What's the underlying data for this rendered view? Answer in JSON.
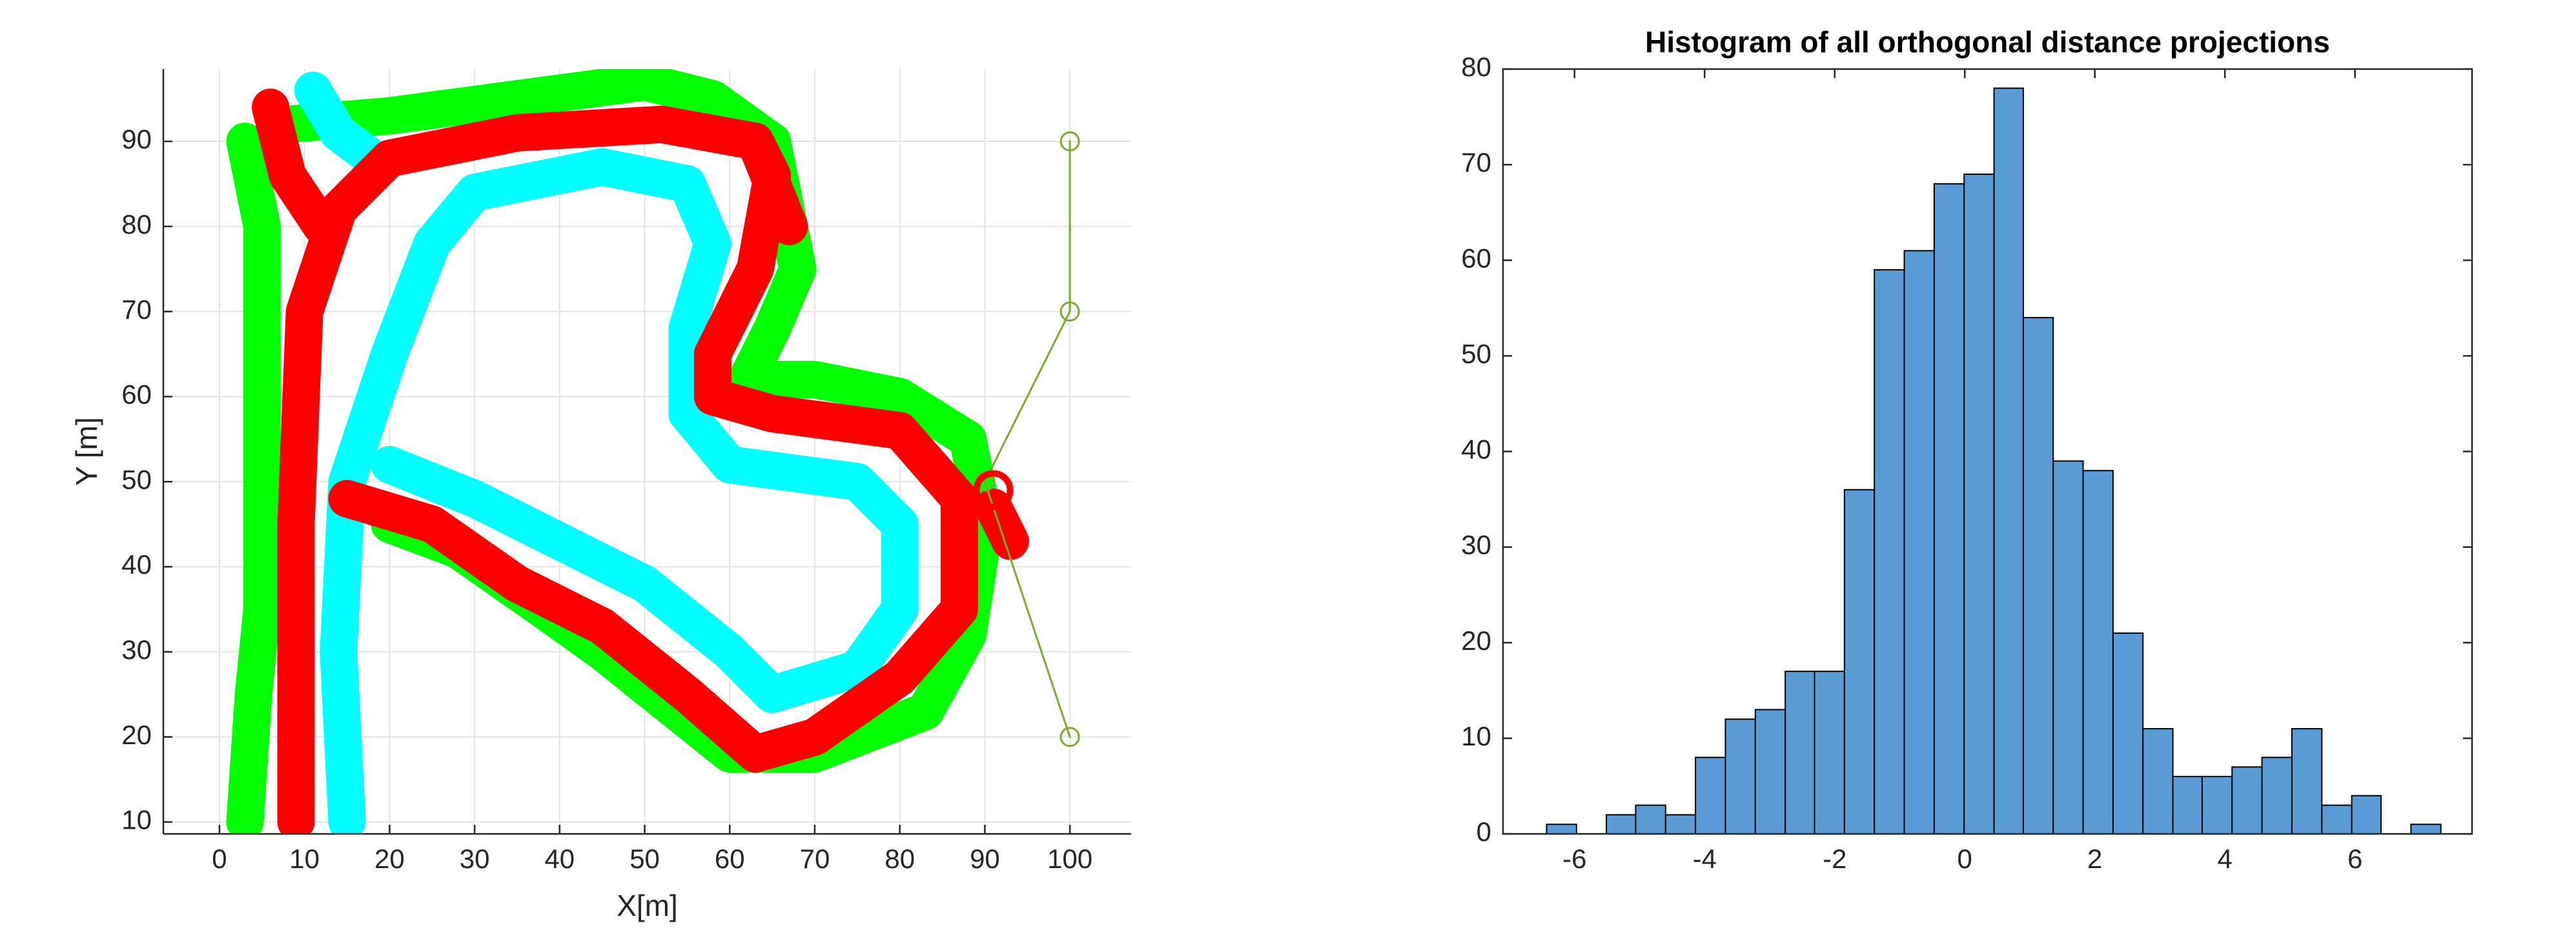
{
  "chart_data": [
    {
      "type": "line",
      "xlabel": "X[m]",
      "ylabel": "Y [m]",
      "xlim": [
        -6.6,
        107.2
      ],
      "ylim": [
        8.6,
        98.5
      ],
      "xticks": [
        0,
        10,
        20,
        30,
        40,
        50,
        60,
        70,
        80,
        90,
        100
      ],
      "yticks": [
        10,
        20,
        30,
        40,
        50,
        60,
        70,
        80,
        90
      ],
      "grid": true,
      "series": [
        {
          "color": "#00ff00",
          "x": [
            3,
            4,
            5,
            5,
            5,
            3,
            null,
            8,
            20,
            35,
            50,
            58,
            65,
            68,
            65,
            62,
            70,
            80,
            88,
            90,
            88,
            83,
            70,
            60,
            55,
            45,
            38,
            28,
            20
          ],
          "y": [
            10,
            25,
            35,
            60,
            80,
            90,
            null,
            92,
            93,
            95,
            97,
            95,
            90,
            75,
            68,
            62,
            62,
            60,
            55,
            45,
            32,
            23,
            18,
            18,
            22,
            30,
            35,
            42,
            45
          ]
        },
        {
          "color": "#00ffff",
          "x": [
            15,
            14,
            15,
            20,
            25,
            30,
            45,
            55,
            58,
            55,
            55,
            60,
            75,
            80,
            80,
            75,
            65,
            60,
            50,
            40,
            30,
            20,
            null,
            11,
            14,
            18
          ],
          "y": [
            10,
            30,
            50,
            65,
            78,
            84,
            87,
            85,
            78,
            68,
            58,
            52,
            50,
            45,
            35,
            28,
            25,
            30,
            38,
            43,
            48,
            52,
            null,
            96,
            91,
            88
          ]
        },
        {
          "color": "#ff0000",
          "x": [
            9,
            9,
            10,
            14,
            20,
            35,
            52,
            63,
            65,
            63,
            58,
            58,
            65,
            80,
            87,
            87,
            80,
            70,
            63,
            55,
            45,
            35,
            25,
            15,
            null,
            6,
            8,
            12,
            null,
            63,
            67,
            null,
            91,
            93
          ],
          "y": [
            10,
            45,
            70,
            82,
            88,
            91,
            92,
            90,
            86,
            75,
            65,
            60,
            58,
            56,
            48,
            35,
            27,
            20,
            18,
            25,
            33,
            38,
            45,
            48,
            null,
            94,
            86,
            80,
            null,
            90,
            80,
            null,
            47,
            43
          ]
        },
        {
          "color": "#77ac30",
          "marker": "circle",
          "x": [
            100,
            100,
            90,
            100
          ],
          "y": [
            90,
            70,
            50,
            20
          ]
        },
        {
          "color": "#ff0000",
          "marker": "circle",
          "x": [
            91
          ],
          "y": [
            49
          ]
        }
      ]
    },
    {
      "type": "histogram",
      "title": "Histogram of all orthogonal distance projections",
      "xlim": [
        -7.1,
        7.8
      ],
      "ylim": [
        0,
        80
      ],
      "xticks": [
        -6,
        -4,
        -2,
        0,
        2,
        4,
        6
      ],
      "yticks": [
        0,
        10,
        20,
        30,
        40,
        50,
        60,
        70,
        80
      ],
      "color": "#5b9bd5",
      "bins": [
        -6.43,
        -5.97,
        -5.51,
        -5.06,
        -4.6,
        -4.14,
        -3.68,
        -3.22,
        -2.76,
        -2.31,
        -1.85,
        -1.39,
        -0.93,
        -0.47,
        -0.01,
        0.45,
        0.9,
        1.36,
        1.82,
        2.28,
        2.74,
        3.2,
        3.65,
        4.11,
        4.57,
        5.03,
        5.49,
        5.95,
        6.4,
        6.86,
        7.32
      ],
      "values": [
        1,
        0,
        2,
        3,
        2,
        8,
        12,
        13,
        17,
        17,
        36,
        59,
        61,
        68,
        69,
        78,
        54,
        39,
        38,
        21,
        11,
        6,
        6,
        7,
        8,
        11,
        3,
        4,
        0,
        1
      ]
    }
  ]
}
